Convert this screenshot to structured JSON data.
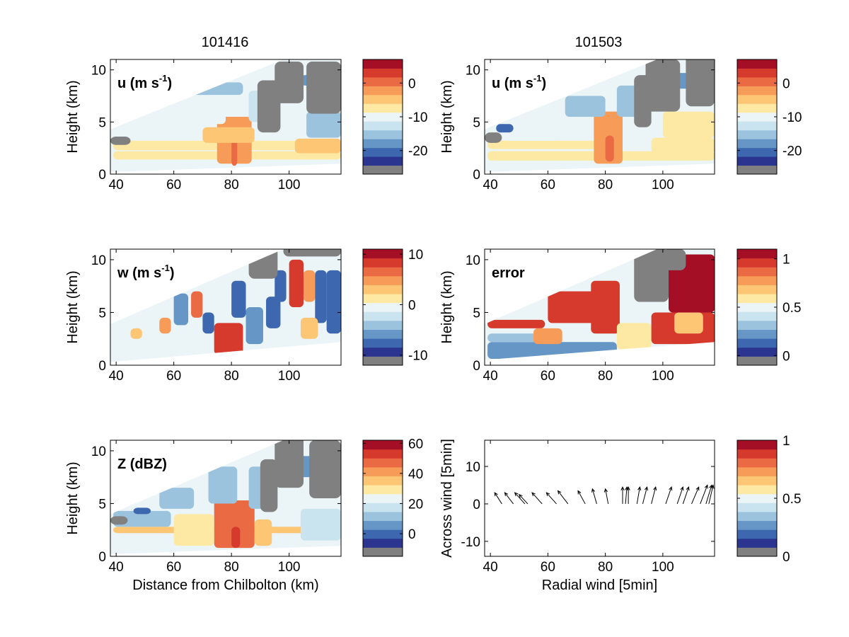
{
  "figure": {
    "column_titles": [
      "101416",
      "101503"
    ],
    "colormap": [
      "#808080",
      "#2b3590",
      "#3d68b0",
      "#6596c6",
      "#9bc3de",
      "#c9e3ef",
      "#ebf4f6",
      "#fde9a3",
      "#fcc675",
      "#f79c58",
      "#ea6a43",
      "#d63a2d",
      "#a50f26"
    ]
  },
  "chart_data": [
    {
      "id": "u-101416",
      "type": "heatmap",
      "title": "101416",
      "label_main": "u (m s",
      "label_sup": "-1",
      "label_tail": ")",
      "ylabel": "Height (km)",
      "xlabel": "",
      "xlim": [
        38,
        118
      ],
      "ylim": [
        0,
        11
      ],
      "xticks": [
        "40",
        "60",
        "80",
        "100"
      ],
      "yticks": [
        "0",
        "5",
        "10"
      ],
      "xtick_values": [
        40,
        60,
        80,
        100
      ],
      "ytick_values": [
        0,
        5,
        10
      ],
      "scan_top": [
        [
          38,
          4.3
        ],
        [
          98,
          11.0
        ]
      ],
      "scan_bottom": [
        [
          38,
          0.2
        ],
        [
          118,
          1.0
        ]
      ],
      "colorbar": {
        "clim": [
          -27,
          7
        ],
        "tick_values": [
          0,
          -10,
          -20
        ],
        "tick_labels": [
          "0",
          "-10",
          "-20"
        ]
      },
      "features": [
        {
          "x": 39,
          "y": 1.4,
          "w": 79,
          "h": 0.8,
          "v": 0.58
        },
        {
          "x": 39,
          "y": 2.3,
          "w": 79,
          "h": 0.9,
          "v": 0.55
        },
        {
          "x": 39,
          "y": 3.5,
          "w": 40,
          "h": 0.5,
          "v": 0.45
        },
        {
          "x": 75,
          "y": 1.0,
          "w": 12,
          "h": 4.5,
          "v": 0.75
        },
        {
          "x": 80,
          "y": 0.8,
          "w": 2,
          "h": 3.0,
          "v": 0.85
        },
        {
          "x": 66,
          "y": 4.8,
          "w": 12,
          "h": 2.0,
          "v": 0.42
        },
        {
          "x": 86,
          "y": 5.0,
          "w": 10,
          "h": 3.0,
          "v": 0.35
        },
        {
          "x": 64,
          "y": 7.6,
          "w": 20,
          "h": 1.2,
          "v": 0.3
        },
        {
          "x": 102,
          "y": 2.0,
          "w": 16,
          "h": 1.4,
          "v": 0.6
        },
        {
          "x": 106,
          "y": 3.5,
          "w": 12,
          "h": 2.5,
          "v": 0.25
        },
        {
          "x": 104,
          "y": 8.5,
          "w": 12,
          "h": 1.0,
          "v": 0.18
        },
        {
          "x": 70,
          "y": 3.0,
          "w": 18,
          "h": 1.5,
          "v": 0.68
        }
      ],
      "gaps": [
        {
          "x": 38,
          "y": 2.8,
          "w": 7,
          "h": 0.8
        },
        {
          "x": 89,
          "y": 4.0,
          "w": 8,
          "h": 5.0
        },
        {
          "x": 95,
          "y": 6.8,
          "w": 10,
          "h": 4.0
        },
        {
          "x": 106,
          "y": 5.8,
          "w": 12,
          "h": 5.0
        }
      ]
    },
    {
      "id": "u-101503",
      "type": "heatmap",
      "title": "101503",
      "label_main": "u (m s",
      "label_sup": "-1",
      "label_tail": ")",
      "ylabel": "Height (km)",
      "xlabel": "",
      "xlim": [
        38,
        118
      ],
      "ylim": [
        0,
        11
      ],
      "xticks": [
        "40",
        "60",
        "80",
        "100"
      ],
      "yticks": [
        "0",
        "5",
        "10"
      ],
      "xtick_values": [
        40,
        60,
        80,
        100
      ],
      "ytick_values": [
        0,
        5,
        10
      ],
      "scan_top": [
        [
          38,
          4.3
        ],
        [
          98,
          11.0
        ]
      ],
      "scan_bottom": [
        [
          38,
          0.2
        ],
        [
          118,
          1.0
        ]
      ],
      "colorbar": {
        "clim": [
          -27,
          7
        ],
        "tick_values": [
          0,
          -10,
          -20
        ],
        "tick_labels": [
          "0",
          "-10",
          "-20"
        ]
      },
      "features": [
        {
          "x": 39,
          "y": 1.3,
          "w": 79,
          "h": 0.9,
          "v": 0.58
        },
        {
          "x": 39,
          "y": 2.4,
          "w": 40,
          "h": 0.8,
          "v": 0.55
        },
        {
          "x": 76,
          "y": 1.0,
          "w": 10,
          "h": 5.0,
          "v": 0.75
        },
        {
          "x": 80,
          "y": 1.2,
          "w": 3,
          "h": 2.5,
          "v": 0.82
        },
        {
          "x": 45,
          "y": 3.2,
          "w": 20,
          "h": 0.8,
          "v": 0.42
        },
        {
          "x": 66,
          "y": 5.5,
          "w": 14,
          "h": 2.0,
          "v": 0.3
        },
        {
          "x": 84,
          "y": 5.5,
          "w": 10,
          "h": 3.0,
          "v": 0.25
        },
        {
          "x": 96,
          "y": 2.0,
          "w": 22,
          "h": 1.5,
          "v": 0.5
        },
        {
          "x": 100,
          "y": 3.5,
          "w": 18,
          "h": 2.5,
          "v": 0.55
        },
        {
          "x": 104,
          "y": 8.2,
          "w": 10,
          "h": 1.5,
          "v": 0.15
        },
        {
          "x": 42,
          "y": 4.0,
          "w": 6,
          "h": 0.8,
          "v": 0.12
        }
      ],
      "gaps": [
        {
          "x": 38,
          "y": 3.0,
          "w": 6,
          "h": 1.0
        },
        {
          "x": 90,
          "y": 4.5,
          "w": 6,
          "h": 5.0
        },
        {
          "x": 94,
          "y": 6.0,
          "w": 12,
          "h": 5.0
        },
        {
          "x": 108,
          "y": 6.5,
          "w": 10,
          "h": 5.0
        }
      ]
    },
    {
      "id": "w-101416",
      "type": "heatmap",
      "title": "",
      "label_main": "w (m s",
      "label_sup": "-1",
      "label_tail": ")",
      "ylabel": "Height (km)",
      "xlabel": "",
      "xlim": [
        38,
        118
      ],
      "ylim": [
        0,
        11
      ],
      "xticks": [
        "40",
        "60",
        "80",
        "100"
      ],
      "yticks": [
        "0",
        "5",
        "10"
      ],
      "xtick_values": [
        40,
        60,
        80,
        100
      ],
      "ytick_values": [
        0,
        5,
        10
      ],
      "scan_top": [
        [
          38,
          3.9
        ],
        [
          98,
          11.0
        ]
      ],
      "scan_bottom": [
        [
          38,
          0.3
        ],
        [
          118,
          2.2
        ]
      ],
      "colorbar": {
        "clim": [
          -12,
          11
        ],
        "tick_values": [
          10,
          0,
          -10
        ],
        "tick_labels": [
          "10",
          "0",
          "-10"
        ]
      },
      "features": [
        {
          "x": 55,
          "y": 3.0,
          "w": 4,
          "h": 1.5,
          "v": 0.7
        },
        {
          "x": 60,
          "y": 3.8,
          "w": 5,
          "h": 3.0,
          "v": 0.15
        },
        {
          "x": 66,
          "y": 4.5,
          "w": 4,
          "h": 2.5,
          "v": 0.85
        },
        {
          "x": 70,
          "y": 3.0,
          "w": 4,
          "h": 2.0,
          "v": 0.1
        },
        {
          "x": 74,
          "y": 1.0,
          "w": 10,
          "h": 3.0,
          "v": 0.92
        },
        {
          "x": 80,
          "y": 4.5,
          "w": 5,
          "h": 3.5,
          "v": 0.08
        },
        {
          "x": 85,
          "y": 2.0,
          "w": 6,
          "h": 3.5,
          "v": 0.2
        },
        {
          "x": 92,
          "y": 3.5,
          "w": 5,
          "h": 3.0,
          "v": 0.1
        },
        {
          "x": 95,
          "y": 6.0,
          "w": 4,
          "h": 3.0,
          "v": 0.05
        },
        {
          "x": 100,
          "y": 5.5,
          "w": 5,
          "h": 4.5,
          "v": 0.9
        },
        {
          "x": 105,
          "y": 6.0,
          "w": 4,
          "h": 3.0,
          "v": 0.75
        },
        {
          "x": 109,
          "y": 4.0,
          "w": 4,
          "h": 5.0,
          "v": 0.12
        },
        {
          "x": 113,
          "y": 3.0,
          "w": 5,
          "h": 6.0,
          "v": 0.06
        },
        {
          "x": 104,
          "y": 2.5,
          "w": 6,
          "h": 2.0,
          "v": 0.68
        },
        {
          "x": 45,
          "y": 2.5,
          "w": 4,
          "h": 1.0,
          "v": 0.65
        }
      ],
      "gaps": [
        {
          "x": 86,
          "y": 8.2,
          "w": 10,
          "h": 3.0
        },
        {
          "x": 98,
          "y": 10.3,
          "w": 20,
          "h": 1.0
        }
      ]
    },
    {
      "id": "error-101503",
      "type": "heatmap",
      "title": "",
      "label_main": "error",
      "label_sup": "",
      "label_tail": "",
      "ylabel": "Height (km)",
      "xlabel": "",
      "xlim": [
        38,
        118
      ],
      "ylim": [
        0,
        11
      ],
      "xticks": [
        "40",
        "60",
        "80",
        "100"
      ],
      "yticks": [
        "0",
        "5",
        "10"
      ],
      "xtick_values": [
        40,
        60,
        80,
        100
      ],
      "ytick_values": [
        0,
        5,
        10
      ],
      "scan_top": [
        [
          38,
          3.9
        ],
        [
          98,
          11.0
        ]
      ],
      "scan_bottom": [
        [
          38,
          0.5
        ],
        [
          118,
          2.2
        ]
      ],
      "colorbar": {
        "clim": [
          -0.1,
          1.1
        ],
        "tick_values": [
          1,
          0.5,
          0
        ],
        "tick_labels": [
          "1",
          "0.5",
          "0"
        ]
      },
      "features": [
        {
          "x": 39,
          "y": 0.6,
          "w": 45,
          "h": 1.6,
          "v": 0.15
        },
        {
          "x": 39,
          "y": 2.2,
          "w": 20,
          "h": 0.8,
          "v": 0.3
        },
        {
          "x": 60,
          "y": 4.0,
          "w": 18,
          "h": 3.0,
          "v": 0.95
        },
        {
          "x": 75,
          "y": 3.0,
          "w": 10,
          "h": 5.0,
          "v": 0.95
        },
        {
          "x": 84,
          "y": 1.5,
          "w": 12,
          "h": 2.5,
          "v": 0.55
        },
        {
          "x": 96,
          "y": 2.0,
          "w": 22,
          "h": 3.0,
          "v": 0.95
        },
        {
          "x": 102,
          "y": 5.0,
          "w": 16,
          "h": 5.5,
          "v": 0.97
        },
        {
          "x": 104,
          "y": 3.0,
          "w": 10,
          "h": 2.0,
          "v": 0.6
        },
        {
          "x": 39,
          "y": 3.5,
          "w": 20,
          "h": 0.8,
          "v": 0.95
        },
        {
          "x": 55,
          "y": 2.0,
          "w": 10,
          "h": 1.5,
          "v": 0.7
        }
      ],
      "gaps": [
        {
          "x": 90,
          "y": 6.0,
          "w": 12,
          "h": 5.0
        },
        {
          "x": 100,
          "y": 9.0,
          "w": 8,
          "h": 2.0
        }
      ]
    },
    {
      "id": "z-101416",
      "type": "heatmap",
      "title": "",
      "label_main": "Z (dBZ)",
      "label_sup": "",
      "label_tail": "",
      "ylabel": "Height (km)",
      "xlabel": "Distance from Chilbolton (km)",
      "xlim": [
        38,
        118
      ],
      "ylim": [
        0,
        11
      ],
      "xticks": [
        "40",
        "60",
        "80",
        "100"
      ],
      "yticks": [
        "0",
        "5",
        "10"
      ],
      "xtick_values": [
        40,
        60,
        80,
        100
      ],
      "ytick_values": [
        0,
        5,
        10
      ],
      "scan_top": [
        [
          38,
          4.0
        ],
        [
          98,
          11.0
        ]
      ],
      "scan_bottom": [
        [
          38,
          0.2
        ],
        [
          118,
          1.0
        ]
      ],
      "colorbar": {
        "clim": [
          -15,
          62
        ],
        "tick_values": [
          60,
          40,
          20,
          0
        ],
        "tick_labels": [
          "60",
          "40",
          "20",
          "0"
        ]
      },
      "features": [
        {
          "x": 39,
          "y": 2.2,
          "w": 79,
          "h": 0.6,
          "v": 0.68
        },
        {
          "x": 74,
          "y": 0.8,
          "w": 14,
          "h": 4.5,
          "v": 0.82
        },
        {
          "x": 80,
          "y": 0.8,
          "w": 3,
          "h": 2.0,
          "v": 0.95
        },
        {
          "x": 60,
          "y": 1.0,
          "w": 14,
          "h": 3.0,
          "v": 0.55
        },
        {
          "x": 88,
          "y": 1.0,
          "w": 6,
          "h": 2.5,
          "v": 0.62
        },
        {
          "x": 39,
          "y": 2.8,
          "w": 20,
          "h": 1.5,
          "v": 0.3
        },
        {
          "x": 55,
          "y": 4.5,
          "w": 12,
          "h": 2.0,
          "v": 0.3
        },
        {
          "x": 72,
          "y": 5.0,
          "w": 10,
          "h": 3.5,
          "v": 0.3
        },
        {
          "x": 86,
          "y": 4.5,
          "w": 6,
          "h": 4.0,
          "v": 0.25
        },
        {
          "x": 104,
          "y": 1.5,
          "w": 14,
          "h": 3.0,
          "v": 0.4
        },
        {
          "x": 100,
          "y": 7.5,
          "w": 14,
          "h": 2.0,
          "v": 0.2
        },
        {
          "x": 46,
          "y": 4.0,
          "w": 6,
          "h": 0.6,
          "v": 0.12
        }
      ],
      "gaps": [
        {
          "x": 38,
          "y": 3.0,
          "w": 6,
          "h": 0.8
        },
        {
          "x": 90,
          "y": 4.2,
          "w": 6,
          "h": 5.0
        },
        {
          "x": 95,
          "y": 6.5,
          "w": 10,
          "h": 5.0
        },
        {
          "x": 107,
          "y": 5.5,
          "w": 11,
          "h": 5.5
        }
      ]
    },
    {
      "id": "wind-vectors",
      "type": "scatter",
      "title": "",
      "xlabel": "Radial wind [5min]",
      "ylabel": "Across wind [5min]",
      "xlim": [
        38,
        118
      ],
      "ylim": [
        -14,
        17
      ],
      "xticks": [
        "40",
        "60",
        "80",
        "100"
      ],
      "yticks": [
        "-10",
        "0",
        "10"
      ],
      "xtick_values": [
        40,
        60,
        80,
        100
      ],
      "ytick_values": [
        -10,
        0,
        10
      ],
      "colorbar": {
        "clim": [
          0,
          1
        ],
        "tick_values": [
          1,
          0.5,
          0
        ],
        "tick_labels": [
          "1",
          "0.5",
          "0"
        ],
        "gray_bottom": true
      },
      "arrows": [
        {
          "x": 44,
          "y": 0,
          "dx": -2.5,
          "dy": 3
        },
        {
          "x": 48,
          "y": 0,
          "dx": -3,
          "dy": 3
        },
        {
          "x": 52,
          "y": 0,
          "dx": -3.5,
          "dy": 3
        },
        {
          "x": 53,
          "y": 0,
          "dx": -3,
          "dy": 2.5
        },
        {
          "x": 58,
          "y": 0,
          "dx": -3.5,
          "dy": 3
        },
        {
          "x": 63,
          "y": 0,
          "dx": -3.5,
          "dy": 3
        },
        {
          "x": 67,
          "y": 0,
          "dx": -3.5,
          "dy": 3.5
        },
        {
          "x": 73,
          "y": 0,
          "dx": -2.5,
          "dy": 3.5
        },
        {
          "x": 77,
          "y": 0,
          "dx": -1.5,
          "dy": 4
        },
        {
          "x": 81,
          "y": 0,
          "dx": -1.0,
          "dy": 4
        },
        {
          "x": 86,
          "y": 0,
          "dx": 0,
          "dy": 4.5
        },
        {
          "x": 87,
          "y": 0,
          "dx": 0.5,
          "dy": 4.5
        },
        {
          "x": 88,
          "y": 0,
          "dx": 0,
          "dy": 4.5
        },
        {
          "x": 91,
          "y": 0,
          "dx": 1.0,
          "dy": 4.5
        },
        {
          "x": 93,
          "y": 0,
          "dx": 1.5,
          "dy": 4.5
        },
        {
          "x": 96,
          "y": 0,
          "dx": 1.5,
          "dy": 4.5
        },
        {
          "x": 101,
          "y": 0,
          "dx": 2,
          "dy": 4.5
        },
        {
          "x": 105,
          "y": 0,
          "dx": 2,
          "dy": 4.5
        },
        {
          "x": 107,
          "y": 0,
          "dx": 2,
          "dy": 4.5
        },
        {
          "x": 110,
          "y": 0,
          "dx": 2.5,
          "dy": 4.5
        },
        {
          "x": 113,
          "y": 0,
          "dx": 2.5,
          "dy": 5
        },
        {
          "x": 115,
          "y": 0,
          "dx": 2,
          "dy": 5
        },
        {
          "x": 116,
          "y": 0,
          "dx": 1.5,
          "dy": 5
        }
      ]
    }
  ]
}
